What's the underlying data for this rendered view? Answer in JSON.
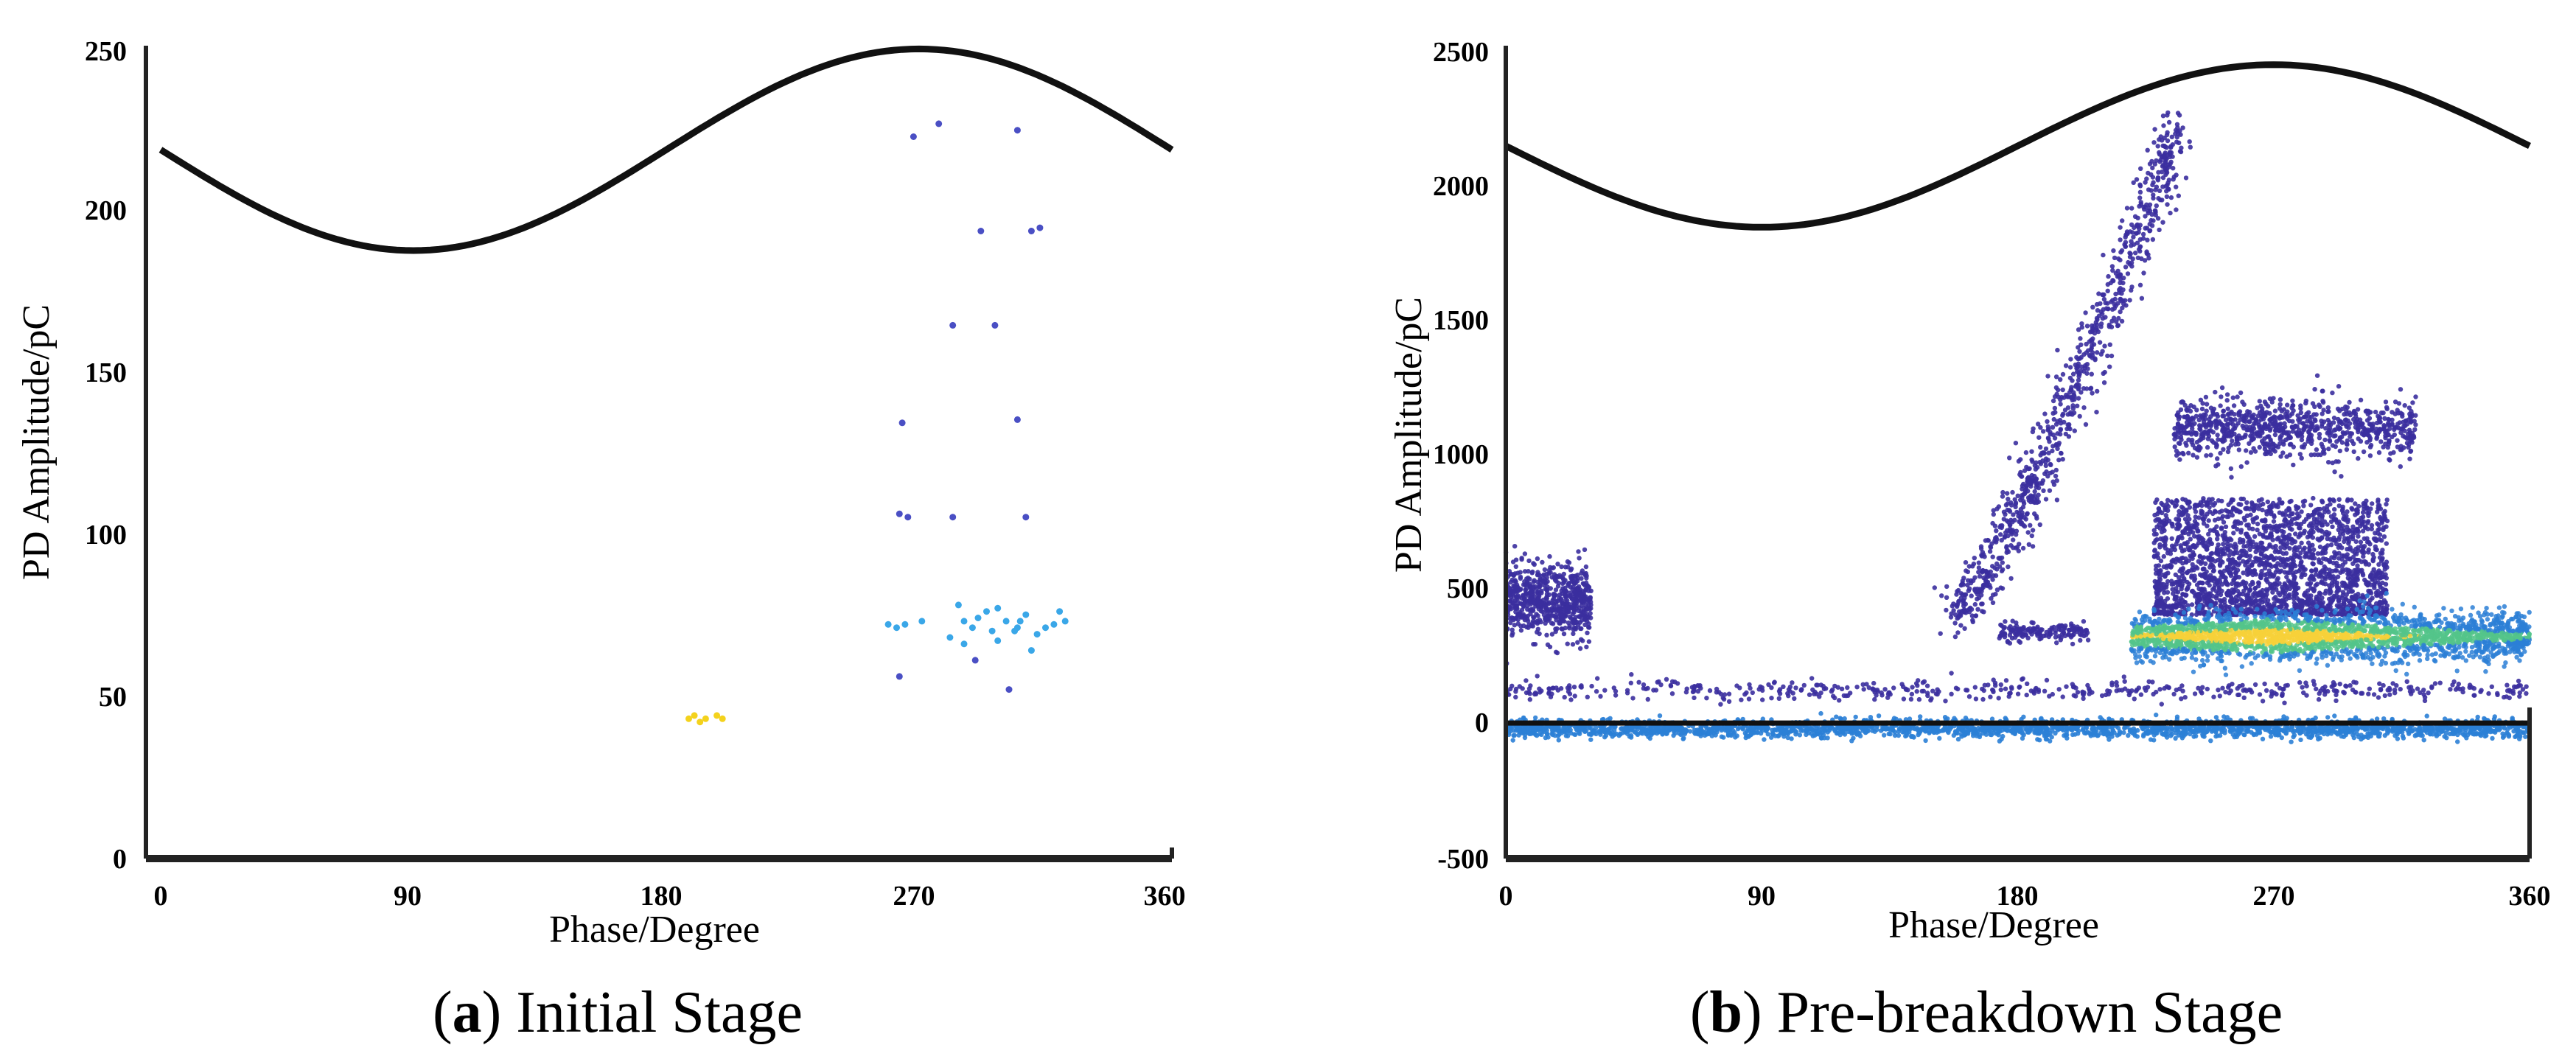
{
  "chart_data": [
    {
      "type": "scatter",
      "caption_letter": "a",
      "caption_text": "Initial Stage",
      "xlabel": "Phase/Degree",
      "ylabel": "PD Amplitude/pC",
      "xlim": [
        0,
        360
      ],
      "ylim": [
        0,
        250
      ],
      "xticks": [
        "0",
        "90",
        "180",
        "270",
        "360"
      ],
      "yticks": [
        "0",
        "50",
        "100",
        "150",
        "200",
        "250"
      ],
      "reference_sine": {
        "name": "AC voltage phase reference",
        "center": 218,
        "amplitude": 31
      },
      "colors": {
        "sparse": "#4a4fc4",
        "mid": "#3aa7e8",
        "dense": "#f4d21c"
      },
      "series": [
        {
          "name": "low-density points",
          "color_key": "sparse",
          "points": [
            [
              268,
              222
            ],
            [
              277,
              226
            ],
            [
              305,
              224
            ],
            [
              292,
              193
            ],
            [
              310,
              193
            ],
            [
              313,
              194
            ],
            [
              282,
              164
            ],
            [
              297,
              164
            ],
            [
              264,
              134
            ],
            [
              305,
              135
            ],
            [
              263,
              106
            ],
            [
              266,
              105
            ],
            [
              282,
              105
            ],
            [
              308,
              105
            ],
            [
              263,
              56
            ],
            [
              290,
              61
            ],
            [
              302,
              52
            ]
          ]
        },
        {
          "name": "medium-density points",
          "color_key": "mid",
          "points": [
            [
              259,
              72
            ],
            [
              262,
              71
            ],
            [
              265,
              72
            ],
            [
              271,
              73
            ],
            [
              281,
              68
            ],
            [
              284,
              78
            ],
            [
              286,
              73
            ],
            [
              289,
              71
            ],
            [
              291,
              74
            ],
            [
              294,
              76
            ],
            [
              296,
              70
            ],
            [
              298,
              77
            ],
            [
              301,
              73
            ],
            [
              304,
              70
            ],
            [
              306,
              73
            ],
            [
              308,
              75
            ],
            [
              310,
              64
            ],
            [
              312,
              69
            ],
            [
              315,
              71
            ],
            [
              318,
              72
            ],
            [
              320,
              76
            ],
            [
              322,
              73
            ],
            [
              286,
              66
            ],
            [
              298,
              67
            ],
            [
              305,
              71
            ]
          ]
        },
        {
          "name": "high-density points",
          "color_key": "dense",
          "points": [
            [
              188,
              43
            ],
            [
              190,
              44
            ],
            [
              192,
              42
            ],
            [
              194,
              43
            ],
            [
              198,
              44
            ],
            [
              200,
              43
            ]
          ]
        }
      ]
    },
    {
      "type": "scatter",
      "caption_letter": "b",
      "caption_text": "Pre-breakdown Stage",
      "xlabel": "Phase/Degree",
      "ylabel": "PD Amplitude/pC",
      "xlim": [
        0,
        360
      ],
      "ylim": [
        -500,
        2500
      ],
      "xticks": [
        "0",
        "90",
        "180",
        "270",
        "360"
      ],
      "yticks": [
        "-500",
        "0",
        "500",
        "1000",
        "1500",
        "2000",
        "2500"
      ],
      "reference_sine": {
        "name": "AC voltage phase reference",
        "center": 2130,
        "amplitude": 300
      },
      "colors": {
        "sparse": "#3b2f9e",
        "mid": "#2b7fd6",
        "dense": "#f7d13a",
        "dense2": "#53c48a",
        "baseline": "#111111"
      },
      "clusters": [
        {
          "name": "left-edge cluster",
          "color_key": "sparse",
          "x_range": [
            0,
            30
          ],
          "y_center": 450,
          "y_spread": 110,
          "count": 650
        },
        {
          "name": "rising streak",
          "color_key": "sparse",
          "x_range": [
            158,
            236
          ],
          "y_range": [
            400,
            2200
          ],
          "count": 900
        },
        {
          "name": "cluster near 1100 pC",
          "color_key": "sparse",
          "x_range": [
            235,
            320
          ],
          "y_center": 1090,
          "y_spread": 90,
          "count": 850
        },
        {
          "name": "block 400-800 pC",
          "color_key": "sparse",
          "x_range": [
            228,
            310
          ],
          "y_range": [
            400,
            830
          ],
          "count": 2200
        },
        {
          "name": "small cluster near 340 pC",
          "color_key": "sparse",
          "x_range": [
            173,
            205
          ],
          "y_center": 335,
          "y_spread": 30,
          "count": 150
        },
        {
          "name": "dense band near 320 pC",
          "color_key": "dense",
          "x_range": [
            220,
            360
          ],
          "y_center": 320,
          "y_spread": 70,
          "count": 2500
        },
        {
          "name": "baseline band",
          "color_key": "mid",
          "x_range": [
            0,
            360
          ],
          "y_center": -20,
          "y_spread": 28,
          "count": 2400
        },
        {
          "name": "sparse band near 120 pC",
          "color_key": "sparse",
          "x_range": [
            0,
            360
          ],
          "y_center": 120,
          "y_spread": 30,
          "count": 500
        }
      ]
    }
  ]
}
